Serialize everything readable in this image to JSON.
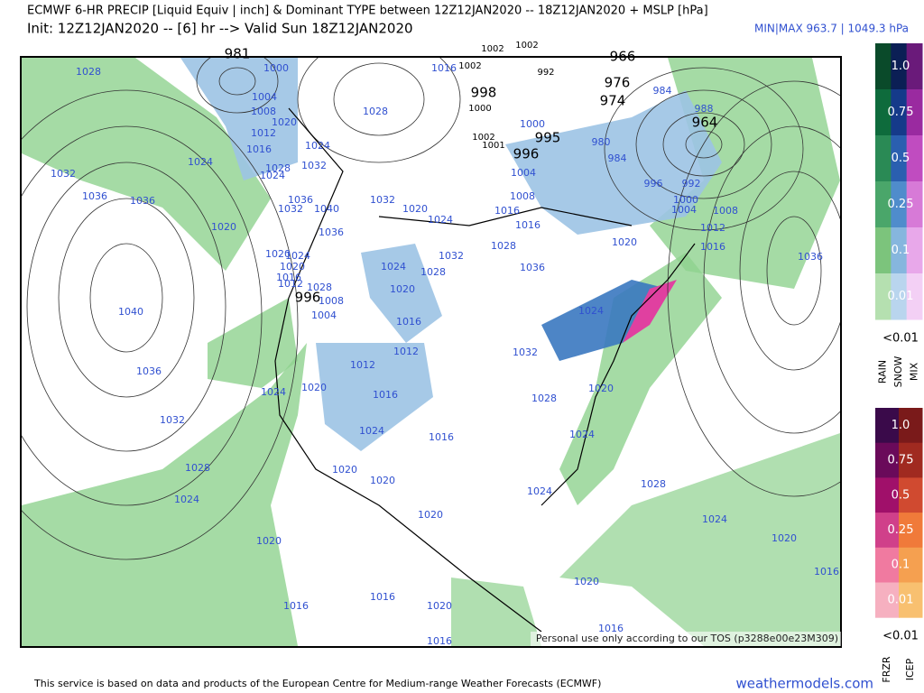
{
  "header": {
    "title": "ECMWF 6-HR PRECIP [Liquid Equiv | inch] & Dominant TYPE between 12Z12JAN2020 -- 18Z12JAN2020 + MSLP [hPa]",
    "init": "Init: 12Z12JAN2020 -- [6] hr --> Valid Sun 18Z12JAN2020",
    "minmax": "MIN|MAX 963.7 | 1049.3 hPa"
  },
  "map": {
    "center_labels": [
      "981",
      "996",
      "998",
      "995",
      "996",
      "966",
      "976",
      "974",
      "964"
    ],
    "small_labels": [
      "1002",
      "1002",
      "1002",
      "1000",
      "1002",
      "1001",
      "992"
    ],
    "isobar_labels": [
      "1028",
      "1000",
      "1004",
      "1008",
      "1020",
      "1012",
      "1016",
      "1024",
      "1028",
      "1032",
      "1024",
      "1032",
      "1036",
      "1036",
      "1020",
      "1024",
      "1036",
      "1032",
      "1040",
      "1036",
      "1028",
      "1016",
      "1032",
      "1020",
      "1024",
      "1016",
      "1016",
      "1008",
      "1004",
      "1000",
      "980",
      "984",
      "984",
      "988",
      "996",
      "992",
      "1000",
      "1004",
      "1008",
      "1012",
      "1016",
      "1020",
      "1028",
      "1032",
      "1036",
      "1024",
      "1028",
      "1020",
      "1016",
      "1012",
      "1036",
      "1040",
      "1036",
      "1032",
      "1028",
      "1024",
      "1020",
      "1016",
      "1024",
      "1020",
      "1016",
      "1012",
      "1024",
      "1016",
      "1020",
      "1020",
      "1020",
      "1032",
      "1028",
      "1020",
      "1024",
      "1028",
      "1024",
      "1024",
      "1020",
      "1020",
      "1016",
      "1016",
      "1020",
      "1016",
      "1016",
      "1024",
      "1020",
      "1020",
      "1016",
      "1012",
      "1024",
      "1028",
      "1008",
      "1004"
    ],
    "disclaimer": "Personal use only according to our TOS (p3288e00e23M309)"
  },
  "legend_upper": {
    "levels": [
      "1.0",
      "0.75",
      "0.5",
      "0.25",
      "0.1",
      "0.01"
    ],
    "below": "<0.01",
    "types": [
      "RAIN",
      "SNOW",
      "MIX"
    ]
  },
  "legend_lower": {
    "levels": [
      "1.0",
      "0.75",
      "0.5",
      "0.25",
      "0.1",
      "0.01"
    ],
    "below": "<0.01",
    "types": [
      "FRZR",
      "ICEP"
    ]
  },
  "footer": {
    "credit": "This service is based on data and products of the European Centre for Medium-range Weather Forecasts (ECMWF)",
    "site": "weathermodels.com"
  }
}
